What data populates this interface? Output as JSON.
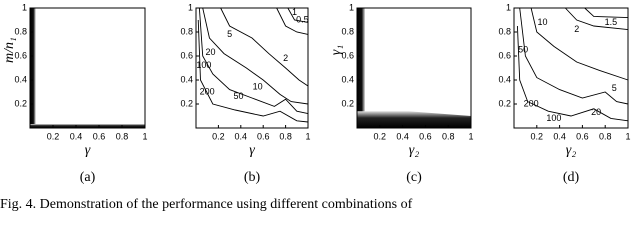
{
  "panels": [
    {
      "label": "(a)",
      "xlabel": "γ",
      "ylabel": "m/n₁",
      "xticks": [
        "0.2",
        "0.4",
        "0.6",
        "0.8",
        "1"
      ],
      "yticks": [
        "0.2",
        "0.4",
        "0.6",
        "0.8",
        "1"
      ],
      "contour_labels": []
    },
    {
      "label": "(b)",
      "xlabel": "γ",
      "xticks": [
        "0.2",
        "0.4",
        "0.6",
        "0.8",
        "1"
      ],
      "yticks": [
        "0.2",
        "0.4",
        "0.6",
        "0.8",
        "1"
      ],
      "contour_labels": [
        "0.5",
        "1",
        "5",
        "2",
        "20",
        "100",
        "200",
        "50",
        "10"
      ]
    },
    {
      "label": "(c)",
      "xlabel": "γ₂",
      "ylabel": "γ₁",
      "xticks": [
        "0.2",
        "0.4",
        "0.6",
        "0.8",
        "1"
      ],
      "yticks": [
        "0.2",
        "0.4",
        "0.6",
        "0.8",
        "1"
      ],
      "contour_labels": []
    },
    {
      "label": "(d)",
      "xlabel": "γ₂",
      "xticks": [
        "0.2",
        "0.4",
        "0.6",
        "0.8",
        "1"
      ],
      "yticks": [
        "0.2",
        "0.4",
        "0.6",
        "0.8",
        "1"
      ],
      "contour_labels": [
        "10",
        "1.5",
        "2",
        "50",
        "5",
        "200",
        "100",
        "20"
      ]
    }
  ],
  "caption": "Fig. 4.  Demonstration of the performance using different combinations of"
}
